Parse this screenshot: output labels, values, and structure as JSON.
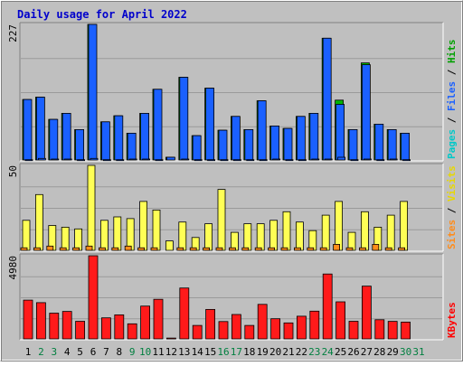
{
  "title": "Daily usage for April 2022",
  "colors": {
    "background": "#c0c0c0",
    "plot_background": "#bfbfbf",
    "title_color": "#0000cc",
    "pages": "#1a60ff",
    "files": "#1a60ff",
    "hits": "#00b400",
    "visits": "#ffff55",
    "sites": "#ff8c1a",
    "kbytes": "#ff1a1a",
    "label_pages": "#00c8c8",
    "label_files": "#1a60ff",
    "label_hits": "#00a000",
    "label_sites": "#ff8c1a",
    "label_visits": "#e8d800",
    "label_kbytes": "#ff0000",
    "day_weekday": "#000000",
    "day_weekend": "#007f3f"
  },
  "chart_data": [
    {
      "type": "bar",
      "panel": "hits-files-pages",
      "ymax_label": "227",
      "ylim": [
        0,
        227
      ],
      "grid": true,
      "legend_parts": [
        {
          "text": "Pages",
          "color_key": "label_pages"
        },
        {
          "text": " / ",
          "color_key": "day_weekday"
        },
        {
          "text": "Files",
          "color_key": "label_files"
        },
        {
          "text": " / ",
          "color_key": "day_weekday"
        },
        {
          "text": "Hits",
          "color_key": "label_hits"
        }
      ],
      "categories": [
        "1",
        "2",
        "3",
        "4",
        "5",
        "6",
        "7",
        "8",
        "9",
        "10",
        "11",
        "12",
        "13",
        "14",
        "15",
        "16",
        "17",
        "18",
        "19",
        "20",
        "21",
        "22",
        "23",
        "24",
        "25",
        "26",
        "27",
        "28",
        "29",
        "30"
      ],
      "series": [
        {
          "name": "Hits",
          "color_key": "hits",
          "values": [
            102,
            106,
            69,
            79,
            52,
            227,
            65,
            75,
            46,
            79,
            119,
            6,
            139,
            42,
            121,
            51,
            74,
            52,
            100,
            58,
            54,
            74,
            79,
            204,
            101,
            52,
            163,
            61,
            52,
            46
          ]
        },
        {
          "name": "Files",
          "color_key": "files",
          "values": [
            102,
            106,
            69,
            79,
            52,
            227,
            65,
            75,
            46,
            79,
            119,
            6,
            139,
            42,
            121,
            51,
            74,
            52,
            100,
            58,
            54,
            74,
            79,
            204,
            94,
            52,
            160,
            61,
            52,
            46
          ]
        },
        {
          "name": "Pages",
          "color_key": "pages",
          "values": [
            2,
            4,
            3,
            3,
            2,
            4,
            2,
            2,
            3,
            3,
            2,
            0,
            3,
            2,
            2,
            2,
            2,
            2,
            2,
            3,
            2,
            2,
            3,
            3,
            6,
            2,
            3,
            2,
            3,
            2
          ]
        }
      ]
    },
    {
      "type": "bar",
      "panel": "sites-visits",
      "ymax_label": "50",
      "ylim": [
        0,
        50
      ],
      "grid": true,
      "legend_parts": [
        {
          "text": "Sites",
          "color_key": "label_sites"
        },
        {
          "text": " / ",
          "color_key": "day_weekday"
        },
        {
          "text": "Visits",
          "color_key": "label_visits"
        }
      ],
      "categories": [
        "1",
        "2",
        "3",
        "4",
        "5",
        "6",
        "7",
        "8",
        "9",
        "10",
        "11",
        "12",
        "13",
        "14",
        "15",
        "16",
        "17",
        "18",
        "19",
        "20",
        "21",
        "22",
        "23",
        "24",
        "25",
        "26",
        "27",
        "28",
        "29",
        "30"
      ],
      "series": [
        {
          "name": "Visits",
          "color_key": "visits",
          "values": [
            18,
            33,
            15,
            14,
            13,
            50,
            18,
            20,
            19,
            29,
            24,
            6,
            17,
            8,
            16,
            36,
            11,
            16,
            16,
            18,
            23,
            17,
            12,
            21,
            29,
            11,
            23,
            14,
            21,
            29
          ]
        },
        {
          "name": "Sites",
          "color_key": "sites",
          "values": [
            2,
            2,
            3,
            2,
            2,
            3,
            2,
            2,
            3,
            2,
            2,
            0,
            2,
            2,
            2,
            2,
            2,
            2,
            2,
            2,
            2,
            2,
            2,
            2,
            4,
            2,
            2,
            4,
            2,
            2
          ]
        }
      ]
    },
    {
      "type": "bar",
      "panel": "kbytes",
      "ymax_label": "4980",
      "ylim": [
        0,
        4980
      ],
      "grid": true,
      "legend_parts": [
        {
          "text": "KBytes",
          "color_key": "label_kbytes"
        }
      ],
      "categories": [
        "1",
        "2",
        "3",
        "4",
        "5",
        "6",
        "7",
        "8",
        "9",
        "10",
        "11",
        "12",
        "13",
        "14",
        "15",
        "16",
        "17",
        "18",
        "19",
        "20",
        "21",
        "22",
        "23",
        "24",
        "25",
        "26",
        "27",
        "28",
        "29",
        "30"
      ],
      "series": [
        {
          "name": "KBytes",
          "color_key": "kbytes",
          "values": [
            2350,
            2200,
            1580,
            1680,
            1100,
            4980,
            1300,
            1480,
            950,
            2000,
            2400,
            100,
            3070,
            850,
            1800,
            1080,
            1500,
            850,
            2100,
            1250,
            1000,
            1400,
            1700,
            3900,
            2250,
            1100,
            3180,
            1190,
            1090,
            1050
          ]
        }
      ]
    }
  ],
  "x_axis": {
    "days": [
      "1",
      "2",
      "3",
      "4",
      "5",
      "6",
      "7",
      "8",
      "9",
      "10",
      "11",
      "12",
      "13",
      "14",
      "15",
      "16",
      "17",
      "18",
      "19",
      "20",
      "21",
      "22",
      "23",
      "24",
      "25",
      "26",
      "27",
      "28",
      "29",
      "30",
      "31"
    ],
    "weekend_days": [
      "2",
      "3",
      "9",
      "10",
      "16",
      "17",
      "23",
      "24",
      "30",
      "31"
    ]
  }
}
